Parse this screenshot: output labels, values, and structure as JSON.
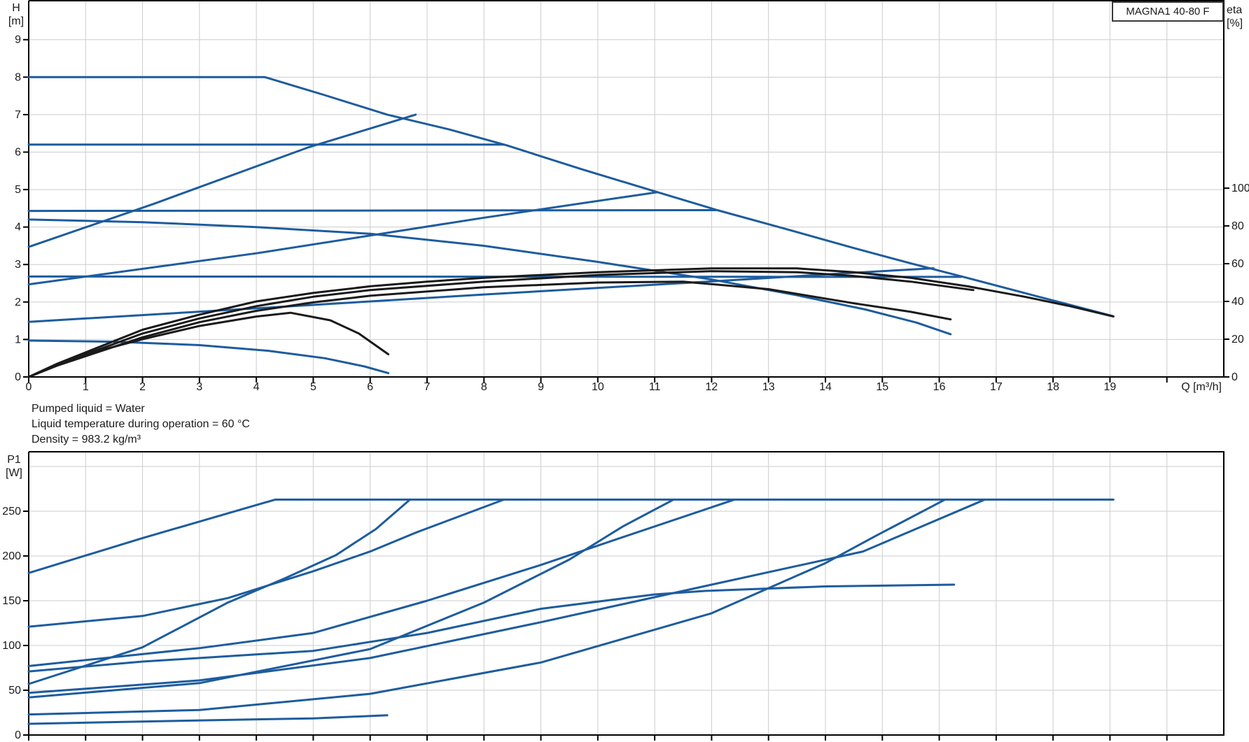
{
  "title_box": {
    "label": "MAGNA1 40-80 F"
  },
  "info": {
    "line1": "Pumped liquid = Water",
    "line2": "Liquid temperature during operation = 60 °C",
    "line3": "Density = 983.2 kg/m³"
  },
  "colors": {
    "curve_blue": "#1d5c9e",
    "curve_black": "#1a1a1a",
    "grid": "#cccccc",
    "axis": "#000000",
    "text": "#1a1a1a"
  },
  "chart_data": [
    {
      "type": "line",
      "name": "head-and-efficiency-curves",
      "title": "MAGNA1 40-80 F",
      "x_axis": {
        "label": "Q [m³/h]",
        "range": [
          0,
          21
        ],
        "grid_min": 1,
        "grid_max": 20,
        "tick_min": 0,
        "tick_max": 20,
        "tick_labels": [
          0,
          1,
          2,
          3,
          4,
          5,
          6,
          7,
          8,
          9,
          10,
          11,
          12,
          13,
          14,
          15,
          16,
          17,
          18,
          19
        ]
      },
      "y_left": {
        "label_line1": "H",
        "label_line2": "[m]",
        "range": [
          0,
          10.04
        ],
        "ticks": [
          0,
          1,
          2,
          3,
          4,
          5,
          6,
          7,
          8,
          9
        ],
        "grid": [
          1,
          2,
          3,
          4,
          5,
          6,
          7,
          8,
          9
        ]
      },
      "y_right": {
        "label_line1": "eta",
        "label_line2": "[%]",
        "range": [
          0,
          199.3
        ],
        "ticks": [
          0,
          20,
          40,
          60,
          80,
          100
        ],
        "grid": []
      },
      "series": [
        {
          "name": "max-curve",
          "color": "blue",
          "axis": "left",
          "points": [
            [
              0,
              8
            ],
            [
              2.5,
              8
            ],
            [
              4.15,
              8
            ],
            [
              5.2,
              7.52
            ],
            [
              6.3,
              7.0
            ],
            [
              7.4,
              6.6
            ],
            [
              8.4,
              6.18
            ],
            [
              9.7,
              5.55
            ],
            [
              11.05,
              4.93
            ],
            [
              12.1,
              4.45
            ],
            [
              13.3,
              3.95
            ],
            [
              14.5,
              3.44
            ],
            [
              15.5,
              3.03
            ],
            [
              16.4,
              2.68
            ],
            [
              17.8,
              2.12
            ],
            [
              19.06,
              1.62
            ]
          ]
        },
        {
          "name": "const-pressure-6.2",
          "color": "blue",
          "axis": "left",
          "points": [
            [
              0,
              6.2
            ],
            [
              8.35,
              6.2
            ]
          ]
        },
        {
          "name": "const-pressure-4.4",
          "color": "blue",
          "axis": "left",
          "points": [
            [
              0,
              4.43
            ],
            [
              12.08,
              4.45
            ]
          ]
        },
        {
          "name": "const-pressure-2.7",
          "color": "blue",
          "axis": "left",
          "points": [
            [
              0,
              2.68
            ],
            [
              16.38,
              2.67
            ]
          ]
        },
        {
          "name": "prop-pressure-high",
          "color": "blue",
          "axis": "left",
          "points": [
            [
              0,
              3.47
            ],
            [
              2.2,
              4.62
            ],
            [
              4.9,
              6.12
            ],
            [
              6.8,
              7.0
            ]
          ]
        },
        {
          "name": "prop-pressure-mid",
          "color": "blue",
          "axis": "left",
          "points": [
            [
              0,
              2.47
            ],
            [
              4,
              3.3
            ],
            [
              8,
              4.25
            ],
            [
              11.05,
              4.93
            ]
          ]
        },
        {
          "name": "prop-pressure-low",
          "color": "blue",
          "axis": "left",
          "points": [
            [
              0,
              1.47
            ],
            [
              4,
              1.83
            ],
            [
              8,
              2.2
            ],
            [
              12,
              2.55
            ],
            [
              14.5,
              2.78
            ],
            [
              15.9,
              2.9
            ]
          ]
        },
        {
          "name": "speed-curve-mid",
          "color": "blue",
          "axis": "left",
          "points": [
            [
              0,
              4.2
            ],
            [
              2,
              4.13
            ],
            [
              4,
              4.0
            ],
            [
              6,
              3.82
            ],
            [
              8,
              3.5
            ],
            [
              10,
              3.07
            ],
            [
              12,
              2.6
            ],
            [
              13.5,
              2.18
            ],
            [
              14.7,
              1.8
            ],
            [
              15.6,
              1.45
            ],
            [
              16.2,
              1.14
            ]
          ]
        },
        {
          "name": "min-curve",
          "color": "blue",
          "axis": "left",
          "points": [
            [
              0,
              0.97
            ],
            [
              1.5,
              0.94
            ],
            [
              3,
              0.85
            ],
            [
              4.2,
              0.7
            ],
            [
              5.2,
              0.5
            ],
            [
              5.9,
              0.28
            ],
            [
              6.32,
              0.1
            ]
          ]
        },
        {
          "name": "eta-max",
          "color": "black",
          "axis": "right",
          "points": [
            [
              0,
              0
            ],
            [
              0.5,
              7
            ],
            [
              1,
              13
            ],
            [
              2,
              25
            ],
            [
              3,
              33
            ],
            [
              4,
              40
            ],
            [
              5,
              44.5
            ],
            [
              6,
              48
            ],
            [
              7,
              50.5
            ],
            [
              8,
              52.5
            ],
            [
              9,
              54
            ],
            [
              10,
              55.5
            ],
            [
              11,
              56.5
            ],
            [
              12,
              57.5
            ],
            [
              13.5,
              57.5
            ],
            [
              14.5,
              55.5
            ],
            [
              15.5,
              52.5
            ],
            [
              16.5,
              48
            ],
            [
              17.5,
              42.5
            ],
            [
              18.3,
              37.5
            ],
            [
              19.06,
              32
            ]
          ]
        },
        {
          "name": "eta-upper-mid",
          "color": "black",
          "axis": "right",
          "points": [
            [
              0,
              0
            ],
            [
              0.5,
              6.5
            ],
            [
              1,
              12
            ],
            [
              2,
              23
            ],
            [
              3,
              31
            ],
            [
              4,
              37.5
            ],
            [
              5,
              42.5
            ],
            [
              6,
              46
            ],
            [
              8,
              50.5
            ],
            [
              10,
              54
            ],
            [
              12,
              56
            ],
            [
              13.5,
              55.5
            ],
            [
              14.5,
              53.5
            ],
            [
              15.5,
              50.5
            ],
            [
              16.6,
              46
            ]
          ]
        },
        {
          "name": "eta-lower-mid",
          "color": "black",
          "axis": "right",
          "points": [
            [
              0,
              0
            ],
            [
              0.5,
              6
            ],
            [
              1,
              11
            ],
            [
              2,
              21
            ],
            [
              3,
              29
            ],
            [
              4,
              35
            ],
            [
              5,
              39.5
            ],
            [
              6,
              43
            ],
            [
              8,
              47.5
            ],
            [
              10,
              50
            ],
            [
              11.5,
              50.5
            ],
            [
              13,
              46.5
            ],
            [
              14.5,
              39
            ],
            [
              15.5,
              34.5
            ],
            [
              16.2,
              30.5
            ]
          ]
        },
        {
          "name": "eta-min",
          "color": "black",
          "axis": "right",
          "points": [
            [
              0,
              0
            ],
            [
              0.5,
              6.5
            ],
            [
              1,
              12
            ],
            [
              2,
              20
            ],
            [
              3,
              27
            ],
            [
              4,
              32
            ],
            [
              4.6,
              34
            ],
            [
              5.3,
              30
            ],
            [
              5.8,
              23
            ],
            [
              6.32,
              12
            ]
          ]
        }
      ]
    },
    {
      "type": "line",
      "name": "power-curves",
      "x_axis": {
        "label": "",
        "range": [
          0,
          21
        ],
        "grid_min": 1,
        "grid_max": 20,
        "tick_min": 0,
        "tick_max": 20,
        "tick_labels": []
      },
      "y_left": {
        "label_line1": "P1",
        "label_line2": "[W]",
        "range": [
          0,
          316.4
        ],
        "ticks": [
          0,
          50,
          100,
          150,
          200,
          250
        ],
        "grid": [
          50,
          100,
          150,
          200,
          250,
          300
        ]
      },
      "y_right": null,
      "series": [
        {
          "name": "p1-max-curve",
          "color": "blue",
          "axis": "left",
          "points": [
            [
              0,
              181
            ],
            [
              2,
              220
            ],
            [
              4.33,
              263
            ],
            [
              19.06,
              263
            ]
          ]
        },
        {
          "name": "p1-const-6.2",
          "color": "blue",
          "axis": "left",
          "points": [
            [
              0,
              121
            ],
            [
              2,
              133
            ],
            [
              3.5,
              153
            ],
            [
              5,
              183
            ],
            [
              6,
              205
            ],
            [
              6.8,
              226
            ],
            [
              8.35,
              263
            ]
          ]
        },
        {
          "name": "p1-prop-high",
          "color": "blue",
          "axis": "left",
          "points": [
            [
              0,
              57
            ],
            [
              2,
              98
            ],
            [
              3.5,
              148
            ],
            [
              4.5,
              175
            ],
            [
              5.4,
              201
            ],
            [
              6.1,
              230
            ],
            [
              6.7,
              263
            ]
          ]
        },
        {
          "name": "p1-const-4.4",
          "color": "blue",
          "axis": "left",
          "points": [
            [
              0,
              77
            ],
            [
              3,
              97
            ],
            [
              5,
              114
            ],
            [
              7,
              150
            ],
            [
              9,
              190
            ],
            [
              10.44,
              221
            ],
            [
              12.4,
              263
            ]
          ]
        },
        {
          "name": "p1-speed-mid",
          "color": "blue",
          "axis": "left",
          "points": [
            [
              0,
              71
            ],
            [
              2,
              82
            ],
            [
              5,
              94
            ],
            [
              7,
              114
            ],
            [
              9,
              141
            ],
            [
              11,
              157
            ],
            [
              11.9,
              161
            ],
            [
              14,
              166
            ],
            [
              16.26,
              168
            ]
          ]
        },
        {
          "name": "p1-prop-mid",
          "color": "blue",
          "axis": "left",
          "points": [
            [
              0,
              42
            ],
            [
              3,
              58
            ],
            [
              6,
              96
            ],
            [
              8,
              148
            ],
            [
              9.5,
              196
            ],
            [
              10.44,
              233
            ],
            [
              11.33,
              263
            ]
          ]
        },
        {
          "name": "p1-const-2.7",
          "color": "blue",
          "axis": "left",
          "points": [
            [
              0,
              47
            ],
            [
              3,
              61
            ],
            [
              6,
              86
            ],
            [
              9,
              126
            ],
            [
              12,
              168
            ],
            [
              14.66,
              205
            ],
            [
              16.8,
              263
            ]
          ]
        },
        {
          "name": "p1-prop-low",
          "color": "blue",
          "axis": "left",
          "points": [
            [
              0,
              23
            ],
            [
              3,
              28
            ],
            [
              6,
              46
            ],
            [
              9,
              81
            ],
            [
              12,
              136
            ],
            [
              14,
              192
            ],
            [
              14.9,
              223
            ],
            [
              16.1,
              263
            ]
          ]
        },
        {
          "name": "p1-min-curve",
          "color": "blue",
          "axis": "left",
          "points": [
            [
              0,
              12.5
            ],
            [
              2,
              15
            ],
            [
              4,
              17.5
            ],
            [
              5,
              18.5
            ],
            [
              6.3,
              22
            ]
          ]
        }
      ]
    }
  ]
}
